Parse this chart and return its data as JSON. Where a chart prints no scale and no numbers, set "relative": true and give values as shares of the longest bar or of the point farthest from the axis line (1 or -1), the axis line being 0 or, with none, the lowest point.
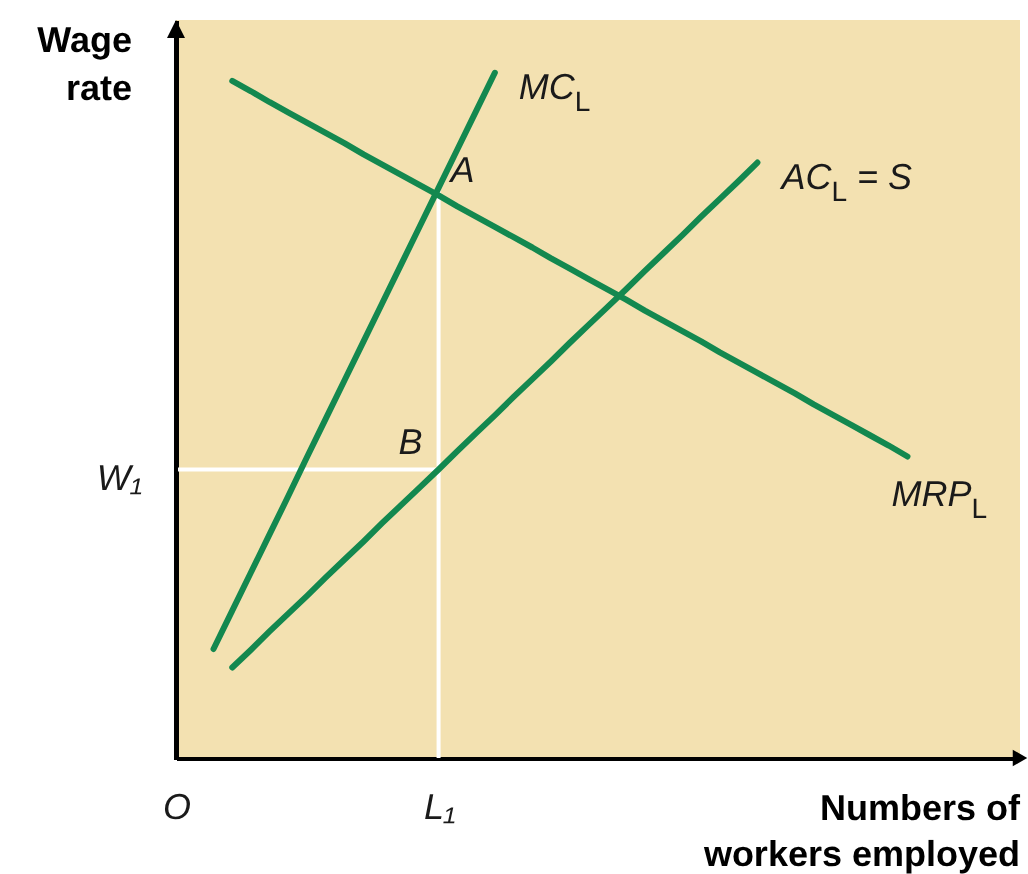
{
  "chart_data": {
    "type": "line",
    "relative": true,
    "tick_labels": "x",
    "ylabel": "Wage\nrate",
    "xlabel": "Numbers of\nworkers employed",
    "categories": [
      "O",
      null,
      null,
      null,
      null,
      null,
      null,
      null,
      null,
      null,
      null,
      null,
      null,
      null,
      "L₁",
      null,
      null,
      null,
      null,
      null,
      null,
      null,
      null,
      null,
      null,
      null,
      null,
      null,
      null,
      null,
      null,
      null,
      null,
      null,
      null,
      null,
      null,
      null,
      null,
      null,
      null,
      null,
      null,
      null,
      null,
      null
    ],
    "series": [
      {
        "name": "MC$_{L}$",
        "color": "#13884f",
        "values": [
          null,
          null,
          0.159,
          0.215,
          0.271,
          0.327,
          0.383,
          0.44,
          0.496,
          0.552,
          0.608,
          0.664,
          0.72,
          0.776,
          0.832,
          0.888,
          0.944,
          1.0,
          null,
          null,
          null,
          null,
          null,
          null,
          null,
          null,
          null,
          null,
          null,
          null,
          null,
          null,
          null,
          null,
          null,
          null,
          null,
          null,
          null,
          null,
          null,
          null,
          null,
          null,
          null,
          null
        ]
      },
      {
        "name": "AC$_{L}$ = S",
        "color": "#13884f",
        "values": [
          null,
          null,
          null,
          0.132,
          0.158,
          0.185,
          0.211,
          0.237,
          0.264,
          0.29,
          0.316,
          0.343,
          0.369,
          0.395,
          0.421,
          0.448,
          0.474,
          0.5,
          0.527,
          0.553,
          0.579,
          0.606,
          0.632,
          0.658,
          0.684,
          0.711,
          0.737,
          0.763,
          0.79,
          0.816,
          0.842,
          0.869,
          null,
          null,
          null,
          null,
          null,
          null,
          null,
          null,
          null,
          null,
          null,
          null,
          null,
          null
        ]
      },
      {
        "name": "MRP$_{L}$",
        "color": "#13884f",
        "values": [
          null,
          null,
          null,
          0.988,
          0.973,
          0.957,
          0.942,
          0.927,
          0.912,
          0.897,
          0.881,
          0.866,
          0.851,
          0.836,
          0.821,
          0.805,
          0.79,
          0.775,
          0.76,
          0.745,
          0.729,
          0.714,
          0.699,
          0.684,
          0.669,
          0.653,
          0.638,
          0.623,
          0.608,
          0.592,
          0.577,
          0.562,
          0.547,
          0.532,
          0.516,
          0.501,
          0.486,
          0.471,
          0.456,
          0.44,
          null,
          null,
          null,
          null,
          null,
          null
        ]
      }
    ],
    "ref_lines": [
      {
        "axis": "y",
        "value": 0.421,
        "label": "W₁",
        "color": "#ffffff"
      },
      {
        "axis": "x",
        "value": "L₁",
        "color": "#ffffff"
      }
    ],
    "annotations": [
      {
        "text": "A",
        "x": "L₁",
        "y": 0.832
      },
      {
        "text": "B",
        "x": "L₁",
        "y": 0.421
      }
    ]
  }
}
